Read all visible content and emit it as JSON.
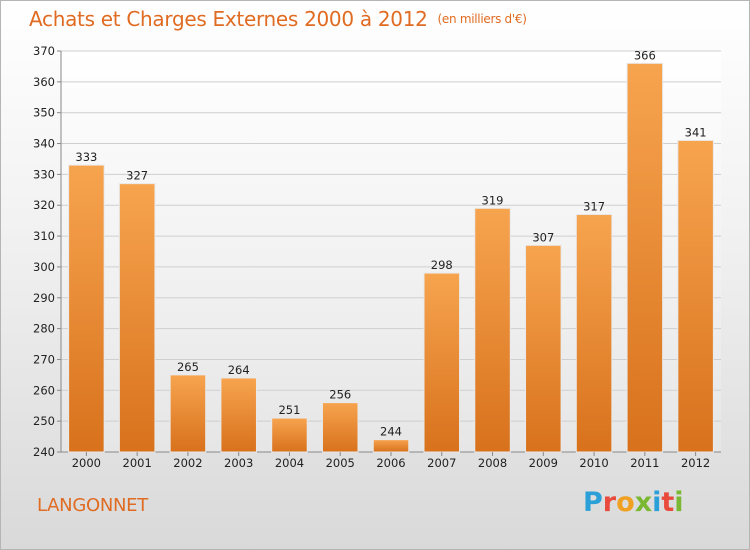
{
  "header": {
    "title": "Achats et Charges Externes 2000 à 2012",
    "unit": "(en milliers d'€)"
  },
  "footer": {
    "commune": "LANGONNET",
    "logo_letters": [
      "P",
      "r",
      "o",
      "x",
      "i",
      "t",
      "i"
    ],
    "logo_colors": [
      "#2b9fd8",
      "#e84a3c",
      "#f0a021",
      "#7ab733",
      "#2b9fd8",
      "#e84a3c",
      "#7ab733"
    ]
  },
  "chart_data": {
    "type": "bar",
    "title": "Achats et Charges Externes 2000 à 2012",
    "subtitle": "(en milliers d'€)",
    "categories": [
      "2000",
      "2001",
      "2002",
      "2003",
      "2004",
      "2005",
      "2006",
      "2007",
      "2008",
      "2009",
      "2010",
      "2011",
      "2012"
    ],
    "values": [
      333,
      327,
      265,
      264,
      251,
      256,
      244,
      298,
      319,
      307,
      317,
      366,
      341
    ],
    "ylim": [
      240,
      370
    ],
    "yticks": [
      240,
      250,
      260,
      270,
      280,
      290,
      300,
      310,
      320,
      330,
      340,
      350,
      360,
      370
    ],
    "grid": true,
    "bar_color_top": "#f7a44f",
    "bar_color_bottom": "#d8711c"
  }
}
